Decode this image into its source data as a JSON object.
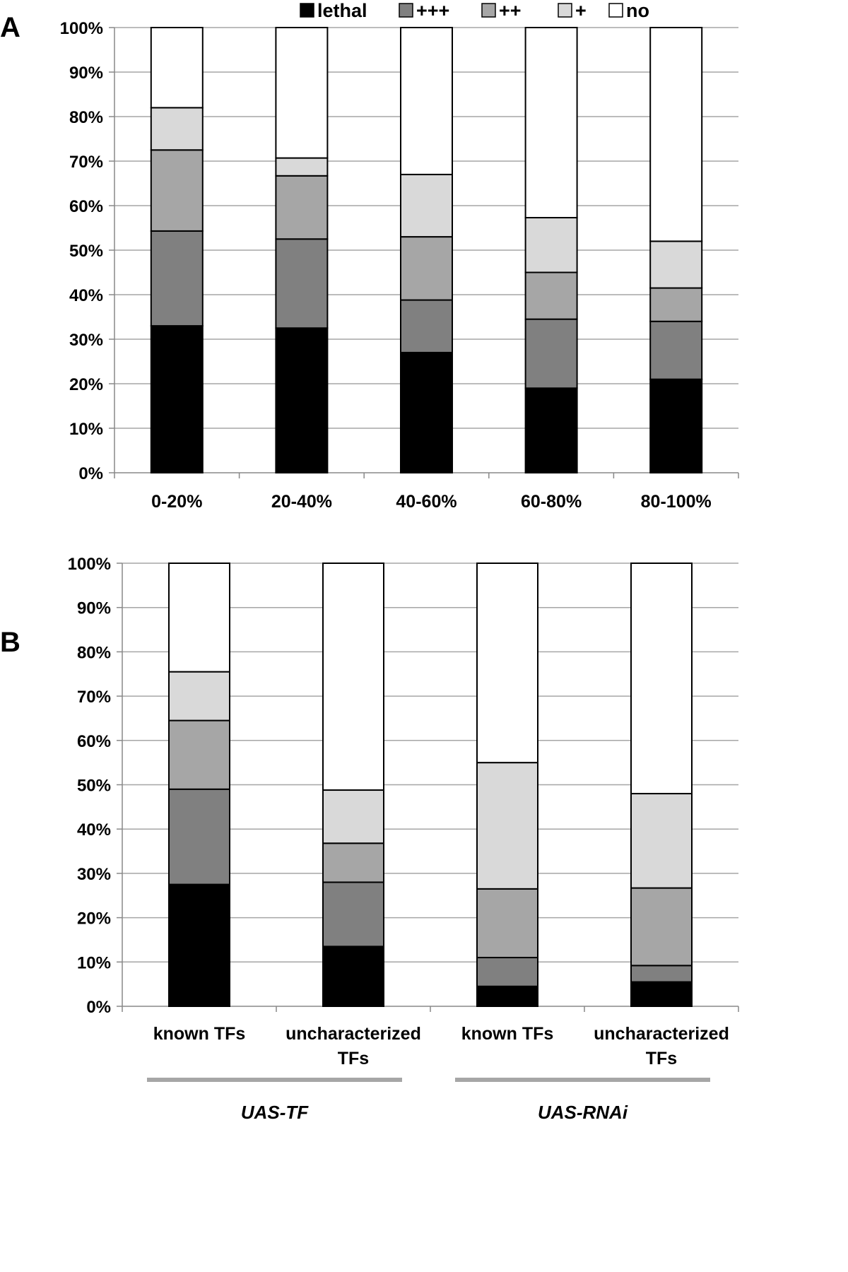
{
  "colors": {
    "lethal": "#000000",
    "+++": "#808080",
    "++": "#a6a6a6",
    "+": "#d9d9d9",
    "no": "#ffffff",
    "grid": "#a6a6a6",
    "bracket": "#a6a6a6"
  },
  "legend": {
    "entries": [
      "lethal",
      "+++",
      "++",
      "+",
      "no"
    ]
  },
  "chart_data": [
    {
      "panel": "A",
      "type": "bar",
      "stacked": true,
      "title": "",
      "xlabel": "",
      "ylabel": "",
      "ylim": [
        0,
        100
      ],
      "yticks": [
        "0%",
        "10%",
        "20%",
        "30%",
        "40%",
        "50%",
        "60%",
        "70%",
        "80%",
        "90%",
        "100%"
      ],
      "grid": true,
      "legend_position": "top",
      "categories": [
        "0-20%",
        "20-40%",
        "40-60%",
        "60-80%",
        "80-100%"
      ],
      "series": [
        {
          "name": "lethal",
          "values": [
            33,
            32.5,
            27,
            19,
            21
          ]
        },
        {
          "name": "+++",
          "values": [
            21.3,
            20,
            11.8,
            15.5,
            13
          ]
        },
        {
          "name": "++",
          "values": [
            18.2,
            14.2,
            14.2,
            10.5,
            7.5
          ]
        },
        {
          "name": "+",
          "values": [
            9.5,
            4,
            14,
            12.3,
            10.5
          ]
        },
        {
          "name": "no",
          "values": [
            18,
            29.3,
            33,
            42.7,
            48
          ]
        }
      ]
    },
    {
      "panel": "B",
      "type": "bar",
      "stacked": true,
      "title": "",
      "xlabel": "",
      "ylabel": "",
      "ylim": [
        0,
        100
      ],
      "yticks": [
        "0%",
        "10%",
        "20%",
        "30%",
        "40%",
        "50%",
        "60%",
        "70%",
        "80%",
        "90%",
        "100%"
      ],
      "grid": true,
      "categories": [
        [
          "known TFs"
        ],
        [
          "uncharacterized",
          "TFs"
        ],
        [
          "known TFs"
        ],
        [
          "uncharacterized",
          "TFs"
        ]
      ],
      "groups": [
        {
          "label": "UAS-TF",
          "categories": [
            0,
            1
          ]
        },
        {
          "label": "UAS-RNAi",
          "categories": [
            2,
            3
          ]
        }
      ],
      "series": [
        {
          "name": "lethal",
          "values": [
            27.5,
            13.5,
            4.5,
            5.5
          ]
        },
        {
          "name": "+++",
          "values": [
            21.5,
            14.5,
            6.5,
            3.7
          ]
        },
        {
          "name": "++",
          "values": [
            15.5,
            8.8,
            15.5,
            17.5
          ]
        },
        {
          "name": "+",
          "values": [
            11,
            12,
            28.5,
            21.3
          ]
        },
        {
          "name": "no",
          "values": [
            24.5,
            51.2,
            45,
            52
          ]
        }
      ]
    }
  ],
  "panels": {
    "A": {
      "letter": "A"
    },
    "B": {
      "letter": "B"
    }
  }
}
